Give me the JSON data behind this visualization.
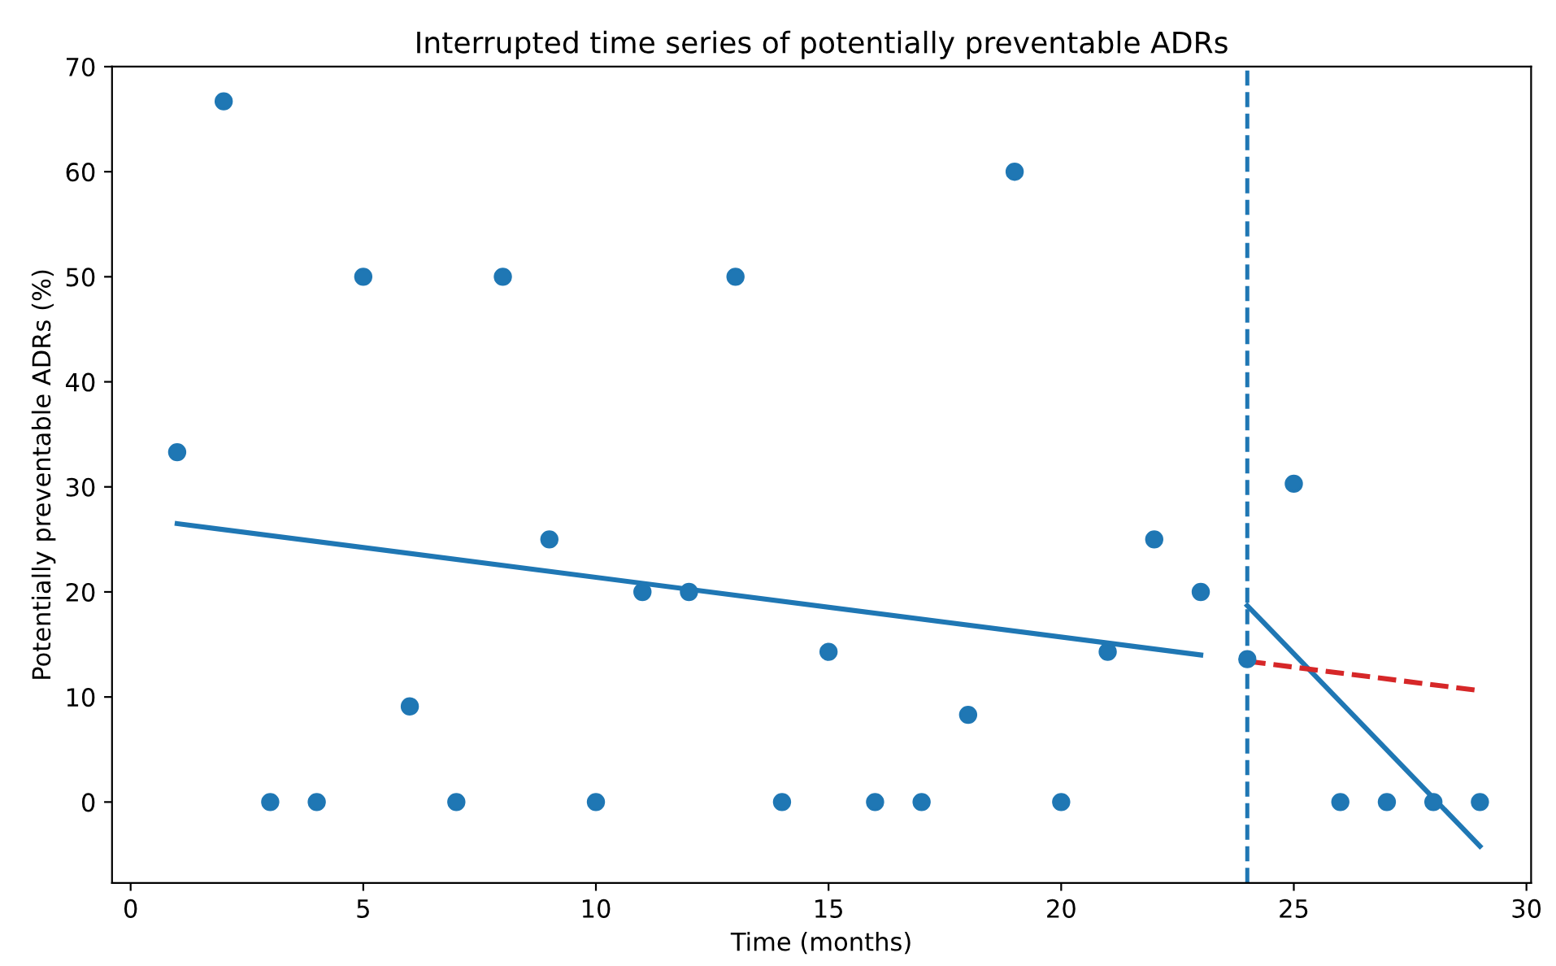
{
  "chart_data": {
    "type": "scatter",
    "title": "Interrupted time series of potentially preventable ADRs",
    "xlabel": "Time (months)",
    "ylabel": "Potentially preventable ADRs (%)",
    "xlim": [
      -0.4,
      30.1
    ],
    "ylim": [
      -7.7,
      70
    ],
    "xticks": [
      0,
      5,
      10,
      15,
      20,
      25,
      30
    ],
    "yticks": [
      0,
      10,
      20,
      30,
      40,
      50,
      60,
      70
    ],
    "grid": false,
    "legend": false,
    "series": [
      {
        "color": "#1f77b4",
        "marker": "circle",
        "x": [
          1,
          2,
          3,
          4,
          5,
          6,
          7,
          8,
          9,
          10,
          11,
          12,
          13,
          14,
          15,
          16,
          17,
          18,
          19,
          20,
          21,
          22,
          23,
          24,
          25,
          26,
          27,
          28,
          29
        ],
        "values": [
          33.3,
          66.7,
          0,
          0,
          50,
          9.1,
          0,
          50,
          25,
          0,
          20,
          20,
          50,
          0,
          14.3,
          0,
          0,
          8.3,
          60,
          0,
          14.3,
          25,
          20,
          13.6,
          30.3,
          0,
          0,
          0,
          0
        ]
      },
      {
        "type": "line",
        "color": "#1f77b4",
        "line_style": "solid",
        "x": [
          1,
          23
        ],
        "values": [
          26.5,
          14.0
        ]
      },
      {
        "type": "line",
        "color": "#1f77b4",
        "line_style": "solid",
        "x": [
          24,
          29
        ],
        "values": [
          18.7,
          -4.2
        ]
      },
      {
        "type": "line",
        "color": "#d62728",
        "line_style": "dashed",
        "x": [
          24,
          29
        ],
        "values": [
          13.4,
          10.6
        ]
      }
    ],
    "ref_lines": [
      {
        "axis": "x",
        "value": 24,
        "label": null,
        "color": "#1f77b4",
        "line_style": "dashed"
      }
    ]
  }
}
